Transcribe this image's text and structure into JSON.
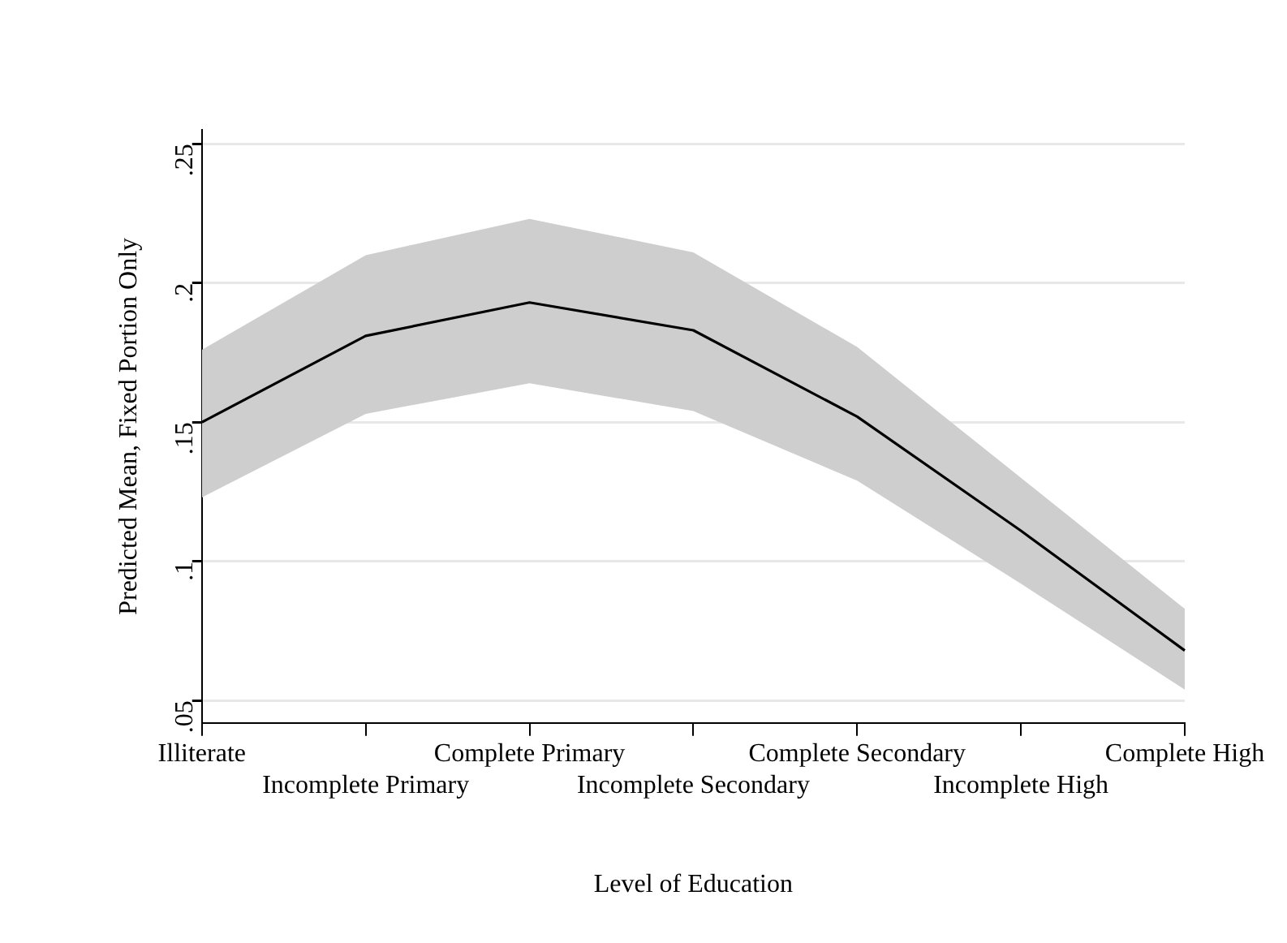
{
  "chart_data": {
    "type": "line",
    "xlabel": "Level of Education",
    "ylabel": "Predicted Mean, Fixed Portion Only",
    "categories": [
      "Illiterate",
      "Incomplete Primary",
      "Complete Primary",
      "Incomplete Secondary",
      "Complete Secondary",
      "Incomplete High",
      "Complete High"
    ],
    "series": [
      {
        "color": "#000000",
        "values": [
          0.15,
          0.181,
          0.193,
          0.183,
          0.152,
          0.111,
          0.068
        ],
        "lower": [
          0.123,
          0.153,
          0.164,
          0.154,
          0.129,
          0.092,
          0.054
        ],
        "upper": [
          0.176,
          0.21,
          0.223,
          0.211,
          0.177,
          0.13,
          0.083
        ]
      }
    ],
    "ylim": [
      0.042,
      0.255
    ],
    "yticks": [
      {
        "value": 0.05,
        "label": ".05"
      },
      {
        "value": 0.1,
        "label": ".1"
      },
      {
        "value": 0.15,
        "label": ".15"
      },
      {
        "value": 0.2,
        "label": ".2"
      },
      {
        "value": 0.25,
        "label": ".25"
      }
    ],
    "grid": "y",
    "legend": false,
    "marker": "none",
    "line_style": "solid"
  }
}
